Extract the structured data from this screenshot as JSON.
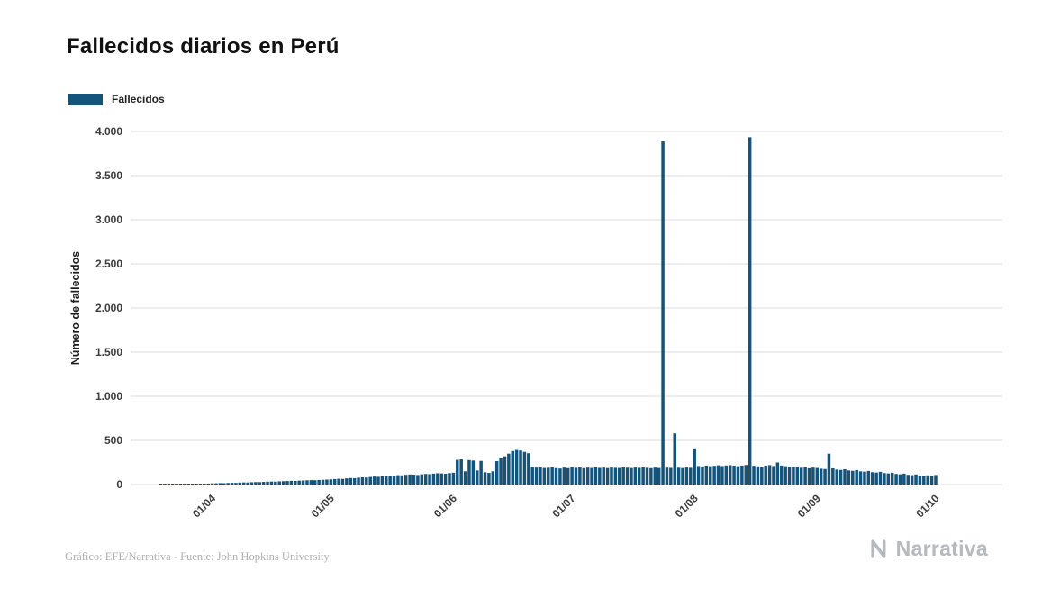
{
  "page": {
    "title": "Fallecidos diarios en Perú",
    "legend_label": "Fallecidos",
    "footer_credit": "Gráfico: EFE/Narrativa - Fuente: John Hopkins University",
    "brand": "Narrativa"
  },
  "colors": {
    "bar": "#14537a",
    "grid": "#dcdcdc",
    "axis_text": "#3c3c3c",
    "title_text": "#111111",
    "footer_text": "#b0b0b0",
    "brand_text": "#b5bac0",
    "background": "#ffffff"
  },
  "chart_data": {
    "type": "bar",
    "title": "Fallecidos diarios en Perú",
    "series_name": "Fallecidos",
    "xlabel": "",
    "ylabel": "Número de fallecidos",
    "ylim": [
      0,
      4000
    ],
    "ytick_step": 500,
    "ytick_labels": [
      "0",
      "500",
      "1.000",
      "1.500",
      "2.000",
      "2.500",
      "3.000",
      "3.500",
      "4.000"
    ],
    "xticks": [
      {
        "label": "01/04",
        "date": "2020-04-01"
      },
      {
        "label": "01/05",
        "date": "2020-05-01"
      },
      {
        "label": "01/06",
        "date": "2020-06-01"
      },
      {
        "label": "01/07",
        "date": "2020-07-01"
      },
      {
        "label": "01/08",
        "date": "2020-08-01"
      },
      {
        "label": "01/09",
        "date": "2020-09-01"
      },
      {
        "label": "01/10",
        "date": "2020-10-01"
      }
    ],
    "grid": "horizontal",
    "legend_position": "top-left",
    "start_date": "2020-03-18",
    "values": [
      1,
      2,
      1,
      3,
      2,
      4,
      3,
      5,
      6,
      5,
      8,
      9,
      11,
      13,
      14,
      16,
      15,
      18,
      20,
      19,
      22,
      24,
      23,
      26,
      28,
      27,
      30,
      32,
      34,
      33,
      36,
      38,
      40,
      42,
      41,
      44,
      46,
      48,
      50,
      49,
      52,
      54,
      56,
      58,
      62,
      66,
      64,
      70,
      74,
      72,
      78,
      82,
      80,
      86,
      90,
      88,
      94,
      98,
      96,
      102,
      106,
      104,
      110,
      114,
      112,
      108,
      116,
      120,
      118,
      124,
      128,
      126,
      122,
      130,
      134,
      280,
      285,
      150,
      278,
      272,
      160,
      268,
      140,
      132,
      150,
      265,
      300,
      320,
      350,
      380,
      392,
      386,
      370,
      355,
      200,
      192,
      196,
      188,
      190,
      196,
      186,
      182,
      192,
      186,
      196,
      190,
      194,
      186,
      192,
      188,
      195,
      189,
      192,
      187,
      193,
      190,
      188,
      194,
      191,
      187,
      193,
      189,
      195,
      190,
      186,
      192,
      188,
      3887,
      192,
      189,
      580,
      191,
      187,
      193,
      190,
      400,
      210,
      205,
      215,
      208,
      212,
      218,
      210,
      216,
      220,
      214,
      208,
      215,
      222,
      3935,
      212,
      206,
      198,
      214,
      220,
      210,
      250,
      215,
      208,
      200,
      195,
      205,
      190,
      196,
      185,
      192,
      188,
      180,
      176,
      350,
      184,
      170,
      166,
      174,
      160,
      156,
      164,
      150,
      146,
      154,
      140,
      136,
      144,
      130,
      126,
      134,
      120,
      116,
      124,
      110,
      106,
      114,
      100,
      96,
      104,
      98,
      108
    ],
    "notable_points": [
      {
        "date": "2020-07-23",
        "value": 3887
      },
      {
        "date": "2020-08-14",
        "value": 3935
      }
    ]
  }
}
